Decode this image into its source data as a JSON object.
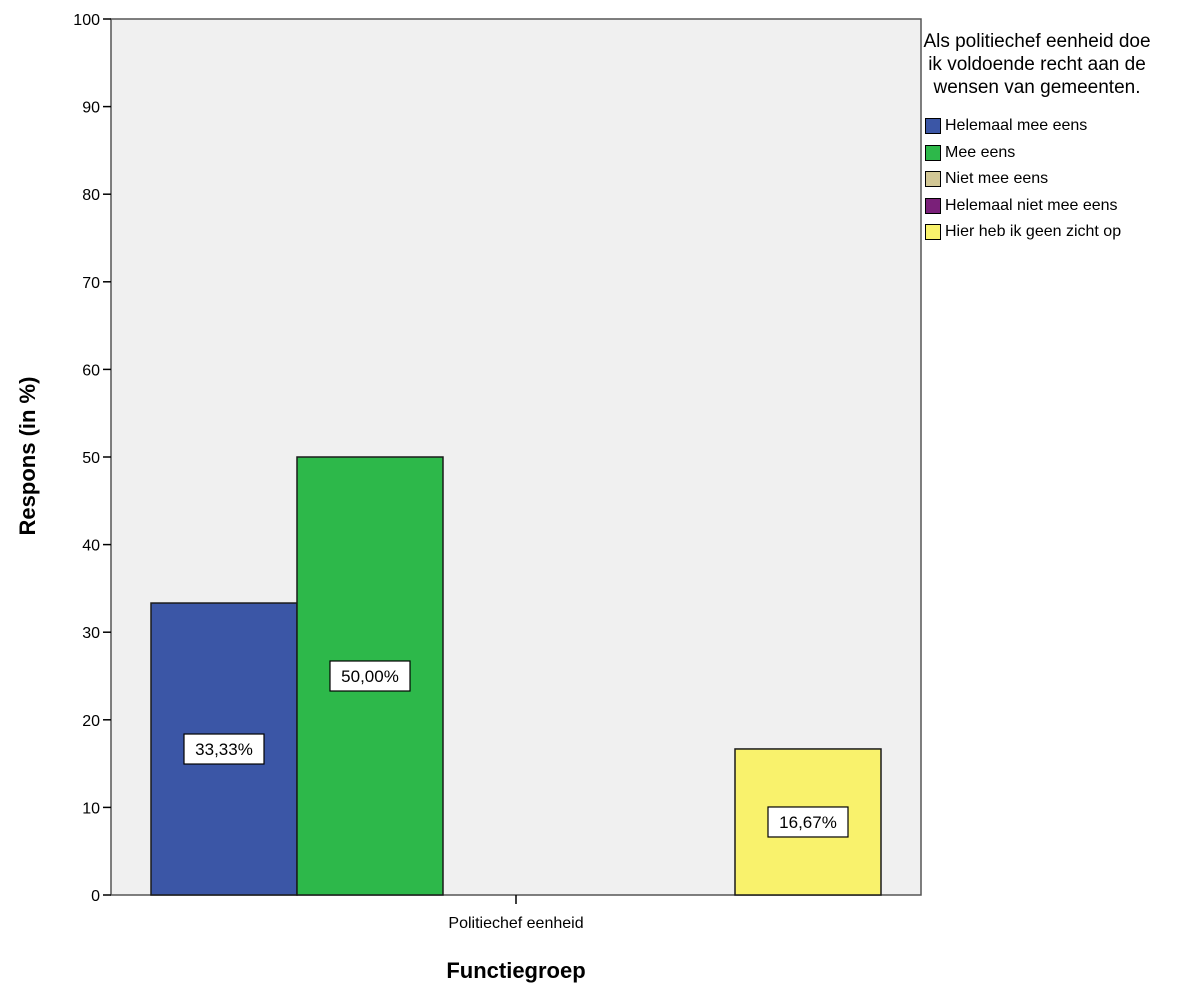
{
  "chart_data": {
    "type": "bar",
    "categories": [
      "Politiechef eenheid"
    ],
    "series": [
      {
        "name": "Helemaal mee eens",
        "values": [
          33.33
        ],
        "label": "33,33%",
        "color": "#3b56a6"
      },
      {
        "name": "Mee eens",
        "values": [
          50.0
        ],
        "label": "50,00%",
        "color": "#2db84a"
      },
      {
        "name": "Niet mee eens",
        "values": [
          0
        ],
        "label": "",
        "color": "#d2c795"
      },
      {
        "name": "Helemaal niet mee eens",
        "values": [
          0
        ],
        "label": "",
        "color": "#7a2079"
      },
      {
        "name": "Hier heb ik geen zicht op",
        "values": [
          16.67
        ],
        "label": "16,67%",
        "color": "#f9f26c"
      }
    ],
    "xlabel": "Functiegroep",
    "ylabel": "Respons (in %)",
    "ylim": [
      0,
      100
    ],
    "yticks": [
      "0",
      "10",
      "20",
      "30",
      "40",
      "50",
      "60",
      "70",
      "80",
      "90",
      "100"
    ],
    "legend": {
      "title": "Als politiechef eenheid doe ik voldoende recht aan de wensen van gemeenten.",
      "position": "right"
    },
    "plot_background": "#f0f0f0",
    "grid": false
  }
}
